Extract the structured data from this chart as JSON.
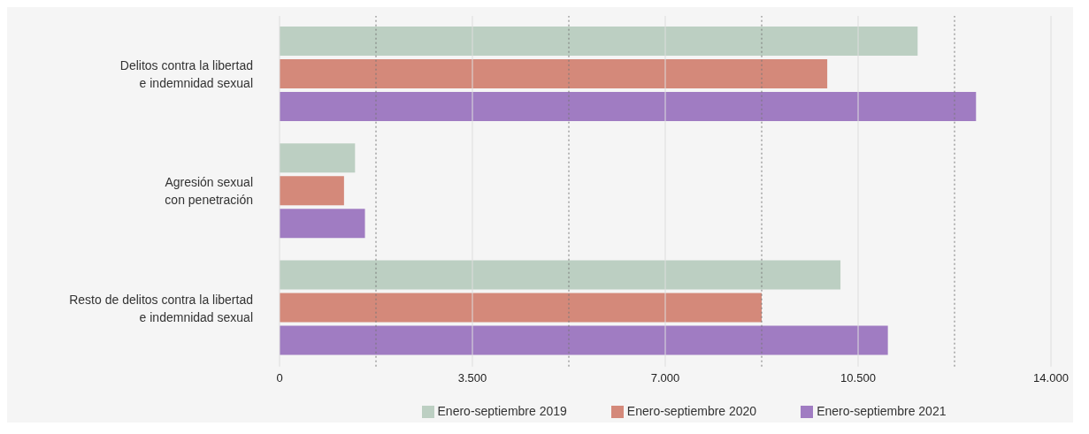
{
  "chart_data": {
    "type": "bar",
    "orientation": "horizontal",
    "categories": [
      "Delitos contra la libertad\ne indemnidad sexual",
      "Agresión sexual\ncon penetración",
      "Resto de delitos contra la libertad\ne indemnidad sexual"
    ],
    "series": [
      {
        "name": "Enero-septiembre  2019",
        "color": "#bccfc2",
        "values": [
          11580,
          1370,
          10180
        ]
      },
      {
        "name": "Enero-septiembre  2020",
        "color": "#d4897a",
        "values": [
          9940,
          1170,
          8750
        ]
      },
      {
        "name": "Enero-septiembre  2021",
        "color": "#a07cc2",
        "values": [
          12640,
          1550,
          11040
        ]
      }
    ],
    "xlim": [
      0,
      14000
    ],
    "xticks": [
      0,
      {
        "value": 1750,
        "label": null
      },
      {
        "value": 3500,
        "label": "3.500"
      },
      {
        "value": 5250,
        "label": null
      },
      {
        "value": 7000,
        "label": "7.000"
      },
      {
        "value": 8750,
        "label": null
      },
      {
        "value": 10500,
        "label": "10.500"
      },
      {
        "value": 12250,
        "label": null
      },
      {
        "value": 14000,
        "label": "14.000"
      }
    ],
    "grid": "x",
    "legend": "bottom"
  }
}
